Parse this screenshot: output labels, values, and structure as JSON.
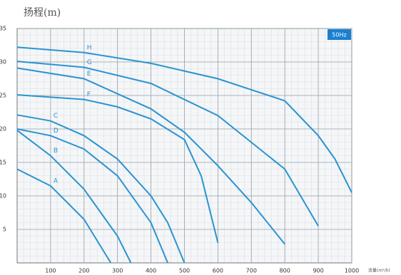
{
  "chart_data": {
    "type": "line",
    "title": "扬程(m)",
    "x_label": "流量(m³/h)",
    "badge": "50Hz",
    "xlim": [
      0,
      1000
    ],
    "ylim": [
      0,
      35
    ],
    "xticks": [
      100,
      200,
      300,
      400,
      500,
      600,
      700,
      800,
      900,
      1000
    ],
    "yticks": [
      5,
      10,
      15,
      20,
      25,
      30,
      35
    ],
    "grid": true,
    "series": [
      {
        "name": "A",
        "color": "#2b93d1",
        "x": [
          0,
          100,
          200,
          280
        ],
        "values": [
          14,
          11.5,
          6.5,
          0
        ]
      },
      {
        "name": "B",
        "color": "#2b93d1",
        "x": [
          0,
          100,
          200,
          300,
          340
        ],
        "values": [
          19.8,
          16,
          11,
          4,
          0
        ]
      },
      {
        "name": "D",
        "color": "#2b93d1",
        "x": [
          0,
          100,
          200,
          300,
          400,
          450
        ],
        "values": [
          20,
          19,
          17,
          13,
          6,
          0
        ]
      },
      {
        "name": "C",
        "color": "#2b93d1",
        "x": [
          0,
          100,
          200,
          300,
          400,
          450,
          500
        ],
        "values": [
          22.1,
          21.2,
          19,
          15.5,
          10,
          6,
          0
        ]
      },
      {
        "name": "F",
        "color": "#2b93d1",
        "x": [
          0,
          200,
          300,
          400,
          500,
          550,
          600
        ],
        "values": [
          25.1,
          24.4,
          23.3,
          21.5,
          18.4,
          13,
          3
        ]
      },
      {
        "name": "E",
        "color": "#2b93d1",
        "x": [
          0,
          200,
          400,
          500,
          600,
          700,
          800
        ],
        "values": [
          29.1,
          27.5,
          23,
          19.5,
          14.5,
          9,
          2.8
        ]
      },
      {
        "name": "G",
        "color": "#2b93d1",
        "x": [
          0,
          200,
          400,
          600,
          800,
          900
        ],
        "values": [
          30.1,
          29.2,
          26.8,
          22,
          14,
          5.5
        ]
      },
      {
        "name": "H",
        "color": "#2b93d1",
        "x": [
          0,
          200,
          400,
          600,
          800,
          900,
          950,
          1000
        ],
        "values": [
          32.2,
          31.4,
          29.8,
          27.5,
          24.2,
          19,
          15.5,
          10.5
        ]
      }
    ]
  }
}
